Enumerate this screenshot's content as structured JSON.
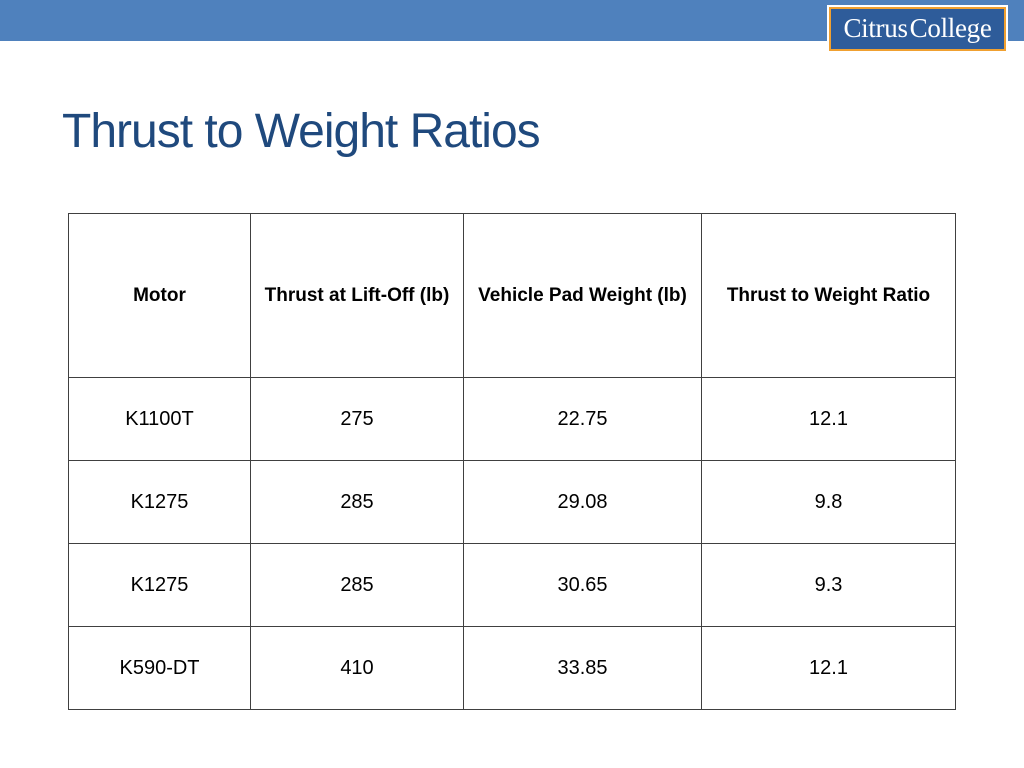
{
  "logo": {
    "part1": "Citrus",
    "part2": "College"
  },
  "slide": {
    "title": "Thrust to Weight Ratios"
  },
  "table": {
    "headers": [
      "Motor",
      "Thrust at Lift-Off (lb)",
      "Vehicle Pad Weight (lb)",
      "Thrust to Weight Ratio"
    ],
    "rows": [
      [
        "K1100T",
        "275",
        "22.75",
        "12.1"
      ],
      [
        "K1275",
        "285",
        "29.08",
        "9.8"
      ],
      [
        "K1275",
        "285",
        "30.65",
        "9.3"
      ],
      [
        "K590-DT",
        "410",
        "33.85",
        "12.1"
      ]
    ]
  },
  "colors": {
    "top_bar": "#4f81bd",
    "title": "#1f497d",
    "logo_background": "#2e5c9a",
    "logo_border": "#f0a030"
  }
}
